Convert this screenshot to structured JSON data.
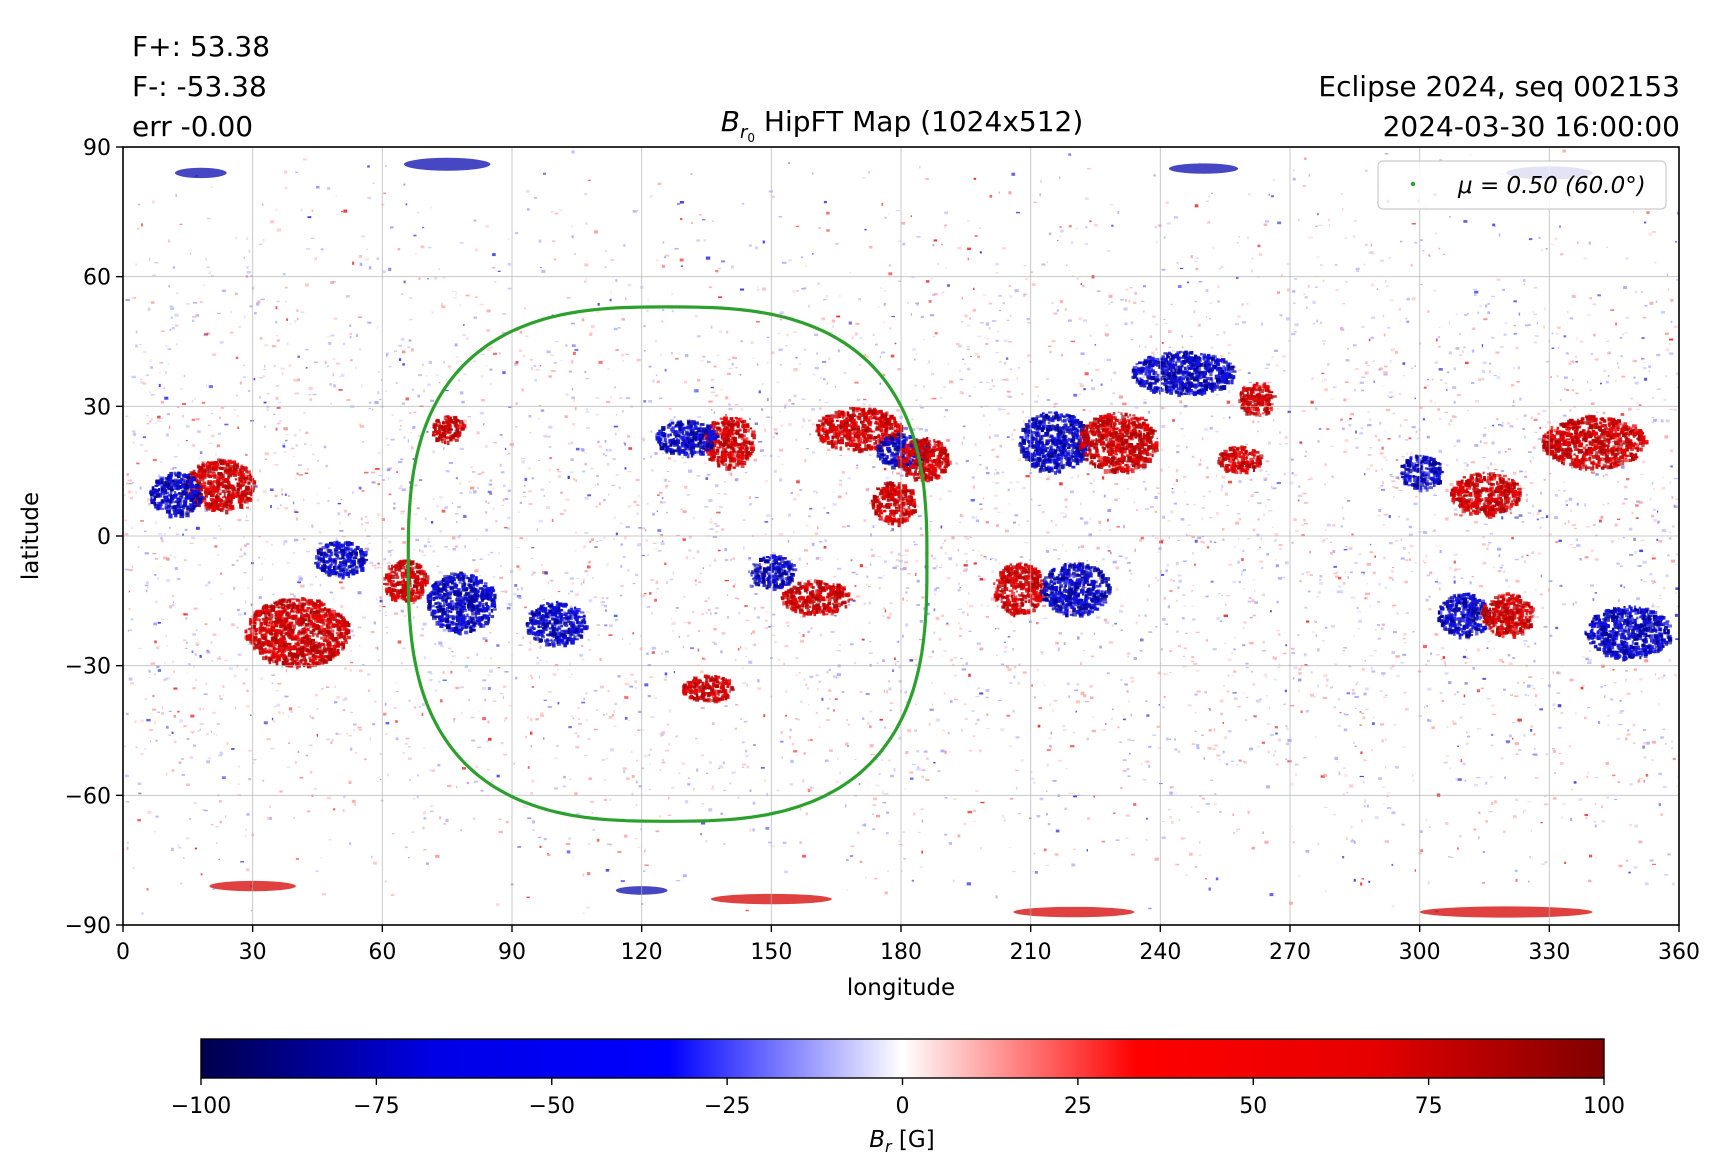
{
  "header": {
    "flux_pos": "F+: 53.38",
    "flux_neg": "F-: -53.38",
    "error": "err -0.00",
    "title_symbol": "B",
    "title_sub": "r",
    "title_subsub": "0",
    "title_rest": " HipFT Map (1024x512)",
    "run_label": "Eclipse 2024, seq 002153",
    "timestamp": "2024-03-30 16:00:00"
  },
  "chart_data": {
    "type": "heatmap",
    "xlabel": "longitude",
    "ylabel": "latitude",
    "xlim": [
      0,
      360
    ],
    "ylim": [
      -90,
      90
    ],
    "xticks": [
      0,
      30,
      60,
      90,
      120,
      150,
      180,
      210,
      240,
      270,
      300,
      330,
      360
    ],
    "yticks": [
      90,
      60,
      30,
      0,
      -30,
      -60,
      -90
    ],
    "grid": true,
    "colormap": "seismic",
    "colormap_stops": [
      "#00004c",
      "#0000e6",
      "#0000ff",
      "#ffffff",
      "#ff0000",
      "#e60000",
      "#800000"
    ],
    "colorbar": {
      "label_symbol": "B",
      "label_sub": "r",
      "label_unit": " [G]",
      "range": [
        -100,
        100
      ],
      "ticks": [
        -100,
        -75,
        -50,
        -25,
        0,
        25,
        50,
        75,
        100
      ]
    },
    "legend": {
      "position": "upper-right",
      "entry": "μ = 0.50 (60.0°)",
      "color": "#2ca02c"
    },
    "contour_mu": {
      "center_lon": 126,
      "center_lat": -6,
      "lon_range": [
        66,
        186
      ],
      "lat_range": [
        -66,
        53
      ],
      "color": "#2ca02c"
    },
    "active_regions": [
      {
        "lon": 140,
        "lat": 22,
        "sign": 1,
        "w": 6,
        "h": 6
      },
      {
        "lon": 130,
        "lat": 23,
        "sign": -1,
        "w": 7,
        "h": 4
      },
      {
        "lon": 170,
        "lat": 25,
        "sign": 1,
        "w": 10,
        "h": 5
      },
      {
        "lon": 180,
        "lat": 20,
        "sign": -1,
        "w": 6,
        "h": 4
      },
      {
        "lon": 185,
        "lat": 18,
        "sign": 1,
        "w": 6,
        "h": 5
      },
      {
        "lon": 215,
        "lat": 22,
        "sign": -1,
        "w": 8,
        "h": 7
      },
      {
        "lon": 230,
        "lat": 22,
        "sign": 1,
        "w": 9,
        "h": 7
      },
      {
        "lon": 178,
        "lat": 8,
        "sign": 1,
        "w": 5,
        "h": 5
      },
      {
        "lon": 207,
        "lat": -12,
        "sign": 1,
        "w": 6,
        "h": 6
      },
      {
        "lon": 220,
        "lat": -12,
        "sign": -1,
        "w": 8,
        "h": 6
      },
      {
        "lon": 78,
        "lat": -15,
        "sign": -1,
        "w": 8,
        "h": 7
      },
      {
        "lon": 40,
        "lat": -22,
        "sign": 1,
        "w": 12,
        "h": 8
      },
      {
        "lon": 22,
        "lat": 12,
        "sign": 1,
        "w": 8,
        "h": 6
      },
      {
        "lon": 12,
        "lat": 10,
        "sign": -1,
        "w": 6,
        "h": 5
      },
      {
        "lon": 100,
        "lat": -20,
        "sign": -1,
        "w": 7,
        "h": 5
      },
      {
        "lon": 160,
        "lat": -14,
        "sign": 1,
        "w": 8,
        "h": 4
      },
      {
        "lon": 150,
        "lat": -8,
        "sign": -1,
        "w": 5,
        "h": 4
      },
      {
        "lon": 310,
        "lat": -18,
        "sign": -1,
        "w": 6,
        "h": 5
      },
      {
        "lon": 320,
        "lat": -18,
        "sign": 1,
        "w": 6,
        "h": 5
      },
      {
        "lon": 348,
        "lat": -22,
        "sign": -1,
        "w": 10,
        "h": 6
      },
      {
        "lon": 340,
        "lat": 22,
        "sign": 1,
        "w": 12,
        "h": 6
      },
      {
        "lon": 315,
        "lat": 10,
        "sign": 1,
        "w": 8,
        "h": 5
      },
      {
        "lon": 300,
        "lat": 15,
        "sign": -1,
        "w": 5,
        "h": 4
      },
      {
        "lon": 258,
        "lat": 18,
        "sign": 1,
        "w": 5,
        "h": 3
      },
      {
        "lon": 245,
        "lat": 38,
        "sign": -1,
        "w": 12,
        "h": 5
      },
      {
        "lon": 262,
        "lat": 32,
        "sign": 1,
        "w": 4,
        "h": 4
      },
      {
        "lon": 65,
        "lat": -10,
        "sign": 1,
        "w": 5,
        "h": 5
      },
      {
        "lon": 50,
        "lat": -5,
        "sign": -1,
        "w": 6,
        "h": 4
      },
      {
        "lon": 75,
        "lat": 25,
        "sign": 1,
        "w": 4,
        "h": 3
      },
      {
        "lon": 135,
        "lat": -35,
        "sign": 1,
        "w": 6,
        "h": 3
      }
    ],
    "polar_bands": [
      {
        "lon": 75,
        "lat": 86,
        "sign": -1,
        "w": 10,
        "h": 1.5
      },
      {
        "lon": 18,
        "lat": 84,
        "sign": -1,
        "w": 6,
        "h": 1.2
      },
      {
        "lon": 250,
        "lat": 85,
        "sign": -1,
        "w": 8,
        "h": 1.2
      },
      {
        "lon": 330,
        "lat": 84,
        "sign": -1,
        "w": 10,
        "h": 1.5
      },
      {
        "lon": 220,
        "lat": -87,
        "sign": 1,
        "w": 14,
        "h": 1.2
      },
      {
        "lon": 320,
        "lat": -87,
        "sign": 1,
        "w": 20,
        "h": 1.3
      },
      {
        "lon": 150,
        "lat": -84,
        "sign": 1,
        "w": 14,
        "h": 1.2
      },
      {
        "lon": 30,
        "lat": -81,
        "sign": 1,
        "w": 10,
        "h": 1.2
      },
      {
        "lon": 120,
        "lat": -82,
        "sign": -1,
        "w": 6,
        "h": 1.0
      }
    ]
  }
}
